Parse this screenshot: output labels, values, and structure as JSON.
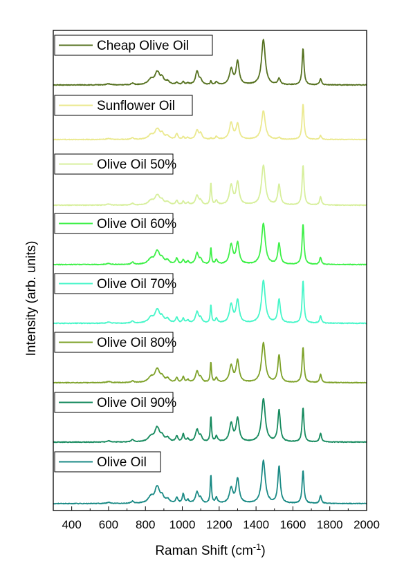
{
  "chart_data": {
    "type": "line",
    "title": "",
    "xlabel": "Raman Shift (cm",
    "xlabel_sup": "-1",
    "xlabel_close": ")",
    "ylabel": "Intensity (arb. units)",
    "xlim": [
      300,
      2000
    ],
    "xticks": [
      400,
      600,
      800,
      1000,
      1200,
      1400,
      1600,
      1800,
      2000
    ],
    "y_ticks_labeled": false,
    "layout": "stacked, offset vertically",
    "legend": "per-series box, top-left of each trace",
    "peaks": {
      "x": [
        310,
        600,
        730,
        830,
        860,
        870,
        890,
        920,
        970,
        1005,
        1030,
        1080,
        1100,
        1155,
        1185,
        1265,
        1300,
        1440,
        1525,
        1655,
        1750
      ],
      "width": [
        0,
        12,
        8,
        18,
        12,
        10,
        12,
        12,
        7,
        6,
        7,
        10,
        8,
        4,
        7,
        11,
        10,
        12,
        8,
        6,
        6
      ]
    },
    "series": [
      {
        "name": "Cheap Olive Oil",
        "color": "#55711f",
        "amplitudes": [
          0.06,
          0.02,
          0.03,
          0.1,
          0.15,
          0.1,
          0.12,
          0.06,
          0.04,
          0.05,
          0.03,
          0.24,
          0.08,
          0.06,
          0.05,
          0.28,
          0.42,
          0.82,
          0.11,
          0.66,
          0.11
        ]
      },
      {
        "name": "Sunflower Oil",
        "color": "#ebe98f",
        "amplitudes": [
          0.06,
          0.02,
          0.03,
          0.08,
          0.12,
          0.08,
          0.1,
          0.06,
          0.1,
          0.04,
          0.03,
          0.16,
          0.1,
          0.02,
          0.05,
          0.3,
          0.27,
          0.52,
          0.03,
          0.65,
          0.07
        ]
      },
      {
        "name": "Olive Oil 50%",
        "color": "#d7ef9c",
        "amplitudes": [
          0.0,
          0.02,
          0.03,
          0.08,
          0.11,
          0.08,
          0.08,
          0.05,
          0.08,
          0.06,
          0.04,
          0.17,
          0.07,
          0.4,
          0.08,
          0.35,
          0.4,
          0.72,
          0.37,
          0.72,
          0.15
        ]
      },
      {
        "name": "Olive Oil 60%",
        "color": "#3ef048",
        "amplitudes": [
          0.0,
          0.02,
          0.04,
          0.1,
          0.16,
          0.1,
          0.1,
          0.07,
          0.11,
          0.08,
          0.05,
          0.2,
          0.08,
          0.3,
          0.08,
          0.35,
          0.38,
          0.74,
          0.38,
          0.74,
          0.13
        ]
      },
      {
        "name": "Olive Oil 70%",
        "color": "#47f6c9",
        "amplitudes": [
          0.0,
          0.02,
          0.04,
          0.1,
          0.16,
          0.1,
          0.1,
          0.07,
          0.1,
          0.08,
          0.05,
          0.2,
          0.08,
          0.33,
          0.08,
          0.33,
          0.41,
          0.77,
          0.43,
          0.77,
          0.13
        ]
      },
      {
        "name": "Olive Oil 80%",
        "color": "#7ea22a",
        "amplitudes": [
          0.0,
          0.02,
          0.03,
          0.1,
          0.16,
          0.1,
          0.1,
          0.07,
          0.08,
          0.1,
          0.05,
          0.2,
          0.08,
          0.37,
          0.08,
          0.3,
          0.39,
          0.72,
          0.5,
          0.64,
          0.15
        ]
      },
      {
        "name": "Olive Oil 90%",
        "color": "#168a5e",
        "amplitudes": [
          0.0,
          0.02,
          0.04,
          0.1,
          0.18,
          0.1,
          0.1,
          0.07,
          0.1,
          0.14,
          0.05,
          0.22,
          0.09,
          0.46,
          0.1,
          0.33,
          0.42,
          0.78,
          0.58,
          0.62,
          0.16
        ]
      },
      {
        "name": "Olive Oil",
        "color": "#1a8a85",
        "amplitudes": [
          0.0,
          0.02,
          0.04,
          0.12,
          0.2,
          0.12,
          0.12,
          0.07,
          0.1,
          0.17,
          0.06,
          0.2,
          0.08,
          0.52,
          0.1,
          0.27,
          0.44,
          0.77,
          0.67,
          0.6,
          0.14
        ]
      }
    ]
  }
}
